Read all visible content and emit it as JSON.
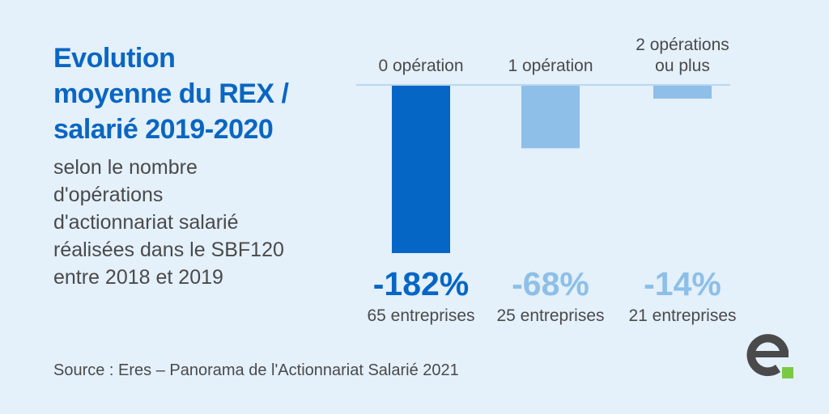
{
  "title_lines": [
    "Evolution",
    "moyenne du REX /",
    "salarié 2019-2020"
  ],
  "subtitle_lines": [
    "selon le nombre",
    "d'opérations",
    "d'actionnariat salarié",
    "réalisées dans le SBF120",
    "entre 2018 et 2019"
  ],
  "source": "Source : Eres – Panorama de l'Actionnariat Salarié 2021",
  "colors": {
    "bar_dark": "#0566c6",
    "bar_light": "#8dbfe8",
    "title": "#0a66c2",
    "text": "#4a4a4a",
    "background": "#e4f0fa",
    "logo_dark": "#4a4a4a",
    "logo_accent": "#7ac943"
  },
  "logo": {
    "icon": "eres-logo-icon"
  },
  "chart_data": {
    "type": "bar",
    "categories": [
      [
        "0 opération"
      ],
      [
        "1 opération"
      ],
      [
        "2 opérations",
        "ou plus"
      ]
    ],
    "values": [
      -182,
      -68,
      -14
    ],
    "value_labels": [
      "-182%",
      "-68%",
      "-14%"
    ],
    "counts": [
      "65 entreprises",
      "25 entreprises",
      "21 entreprises"
    ],
    "bar_colors": [
      "#0566c6",
      "#8dbfe8",
      "#8dbfe8"
    ],
    "value_colors": [
      "#0566c6",
      "#8dbfe8",
      "#8dbfe8"
    ],
    "ylim": [
      -182,
      0
    ],
    "title": "",
    "xlabel": "",
    "ylabel": ""
  }
}
